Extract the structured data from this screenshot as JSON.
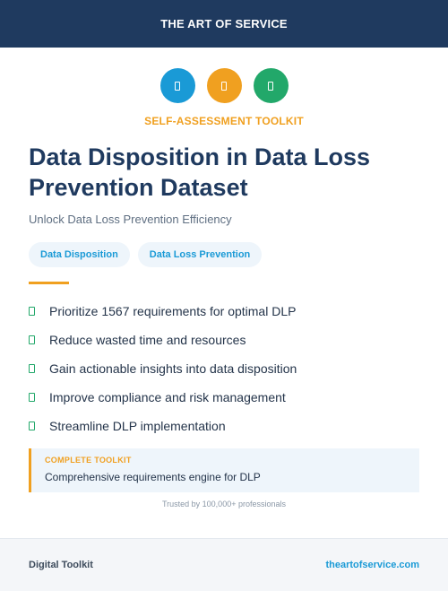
{
  "header": {
    "brand": "THE ART OF SERVICE"
  },
  "icons": [
    {
      "name": "document-icon",
      "color": "#1a9ad6"
    },
    {
      "name": "document-icon",
      "color": "#f0a020"
    },
    {
      "name": "document-icon",
      "color": "#22a86a"
    }
  ],
  "kicker": "SELF-ASSESSMENT TOOLKIT",
  "title": "Data Disposition in Data Loss Prevention Dataset",
  "subtitle": "Unlock Data Loss Prevention Efficiency",
  "tags": [
    "Data Disposition",
    "Data Loss Prevention"
  ],
  "benefits": [
    "Prioritize 1567 requirements for optimal DLP",
    "Reduce wasted time and resources",
    "Gain actionable insights into data disposition",
    "Improve compliance and risk management",
    "Streamline DLP implementation"
  ],
  "callout": {
    "label": "COMPLETE TOOLKIT",
    "description": "Comprehensive requirements engine for DLP"
  },
  "trusted": "Trusted by 100,000+ professionals",
  "footer": {
    "left": "Digital Toolkit",
    "right": "theartofservice.com"
  },
  "colors": {
    "navy": "#1f3a5f",
    "accent_orange": "#f0a020",
    "accent_blue": "#1a9ad6",
    "accent_green": "#22a86a"
  }
}
